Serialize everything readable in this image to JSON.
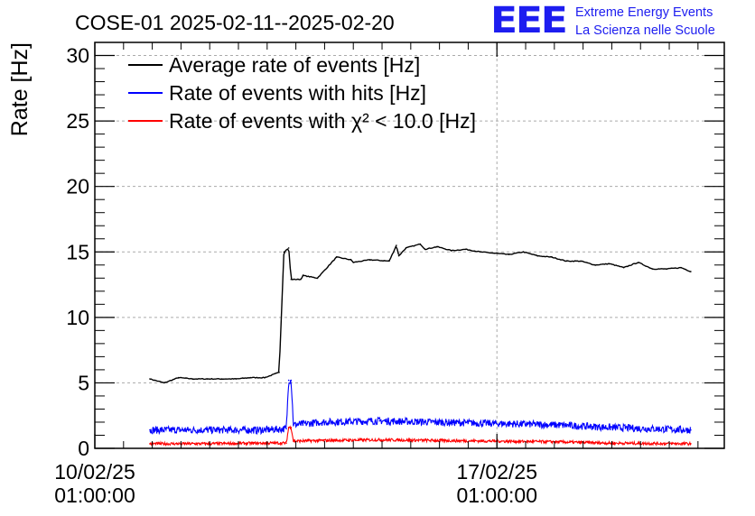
{
  "header": {
    "logo_mark": "EEE",
    "logo_line1": "Extreme Energy Events",
    "logo_line2": "La Scienza nelle Scuole",
    "logo_color": "#1d1df0"
  },
  "chart_data": {
    "type": "line",
    "title": "COSE-01 2025-02-11--2025-02-20",
    "ylabel": "Rate [Hz]",
    "xlabel": "",
    "ylim": [
      0,
      31
    ],
    "xlim": [
      "2025-02-10 01:00:00",
      "2025-02-21 00:00:00"
    ],
    "yticks": [
      0,
      5,
      10,
      15,
      20,
      25,
      30
    ],
    "xticks": [
      {
        "x": "2025-02-10 01:00:00",
        "date": "10/02/25",
        "time": "01:00:00"
      },
      {
        "x": "2025-02-17 01:00:00",
        "date": "17/02/25",
        "time": "01:00:00"
      }
    ],
    "grid": true,
    "legend_position": "top-left",
    "series": [
      {
        "name": "Average rate of events [Hz]",
        "color": "#000000",
        "x": [
          "2025-02-11 00:00:00",
          "2025-02-11 06:00:00",
          "2025-02-11 12:00:00",
          "2025-02-11 18:00:00",
          "2025-02-12 00:00:00",
          "2025-02-12 06:00:00",
          "2025-02-12 12:00:00",
          "2025-02-12 18:00:00",
          "2025-02-13 00:00:00",
          "2025-02-13 06:00:00",
          "2025-02-13 08:00:00",
          "2025-02-13 10:00:00",
          "2025-02-13 11:00:00",
          "2025-02-13 15:00:00",
          "2025-02-13 16:00:00",
          "2025-02-13 22:00:00",
          "2025-02-14 06:00:00",
          "2025-02-14 12:00:00",
          "2025-02-14 13:00:00",
          "2025-02-14 20:00:00",
          "2025-02-15 04:00:00",
          "2025-02-15 07:00:00",
          "2025-02-15 08:00:00",
          "2025-02-15 11:00:00",
          "2025-02-15 17:00:00",
          "2025-02-15 19:00:00",
          "2025-02-16 00:00:00",
          "2025-02-16 06:00:00",
          "2025-02-16 12:00:00",
          "2025-02-16 18:00:00",
          "2025-02-17 00:00:00",
          "2025-02-17 06:00:00",
          "2025-02-17 12:00:00",
          "2025-02-17 18:00:00",
          "2025-02-18 00:00:00",
          "2025-02-18 06:00:00",
          "2025-02-18 12:00:00",
          "2025-02-18 18:00:00",
          "2025-02-19 00:00:00",
          "2025-02-19 06:00:00",
          "2025-02-19 12:00:00",
          "2025-02-19 18:00:00",
          "2025-02-20 00:00:00",
          "2025-02-20 06:00:00",
          "2025-02-20 10:00:00"
        ],
        "values": [
          5.3,
          5.0,
          5.4,
          5.3,
          5.3,
          5.3,
          5.3,
          5.4,
          5.4,
          5.8,
          15.0,
          15.3,
          12.9,
          12.9,
          13.2,
          13.0,
          14.6,
          14.4,
          14.2,
          14.4,
          14.3,
          15.5,
          14.7,
          15.3,
          15.6,
          15.2,
          15.4,
          15.1,
          15.2,
          15.0,
          14.9,
          14.8,
          15.0,
          14.7,
          14.6,
          14.3,
          14.3,
          14.0,
          14.1,
          13.8,
          14.2,
          13.7,
          13.7,
          13.8,
          13.5
        ]
      },
      {
        "name": "Rate of events with hits [Hz]",
        "color": "#0000ff",
        "x": [
          "2025-02-11 00:00:00",
          "2025-02-12 00:00:00",
          "2025-02-13 00:00:00",
          "2025-02-13 09:00:00",
          "2025-02-13 10:00:00",
          "2025-02-13 11:00:00",
          "2025-02-13 12:00:00",
          "2025-02-14 00:00:00",
          "2025-02-15 00:00:00",
          "2025-02-16 00:00:00",
          "2025-02-17 00:00:00",
          "2025-02-18 00:00:00",
          "2025-02-19 00:00:00",
          "2025-02-20 10:00:00"
        ],
        "values": [
          1.4,
          1.4,
          1.4,
          1.5,
          5.2,
          5.2,
          1.8,
          2.0,
          2.1,
          2.0,
          1.9,
          1.8,
          1.6,
          1.4
        ]
      },
      {
        "name": "Rate of events with χ² < 10.0 [Hz]",
        "color": "#ff0000",
        "x": [
          "2025-02-11 00:00:00",
          "2025-02-12 00:00:00",
          "2025-02-13 00:00:00",
          "2025-02-13 09:00:00",
          "2025-02-13 10:00:00",
          "2025-02-13 11:00:00",
          "2025-02-13 12:00:00",
          "2025-02-14 00:00:00",
          "2025-02-15 00:00:00",
          "2025-02-16 00:00:00",
          "2025-02-17 00:00:00",
          "2025-02-18 00:00:00",
          "2025-02-19 00:00:00",
          "2025-02-20 10:00:00"
        ],
        "values": [
          0.35,
          0.35,
          0.4,
          0.4,
          1.6,
          1.6,
          0.55,
          0.6,
          0.65,
          0.6,
          0.55,
          0.5,
          0.4,
          0.35
        ]
      }
    ]
  }
}
